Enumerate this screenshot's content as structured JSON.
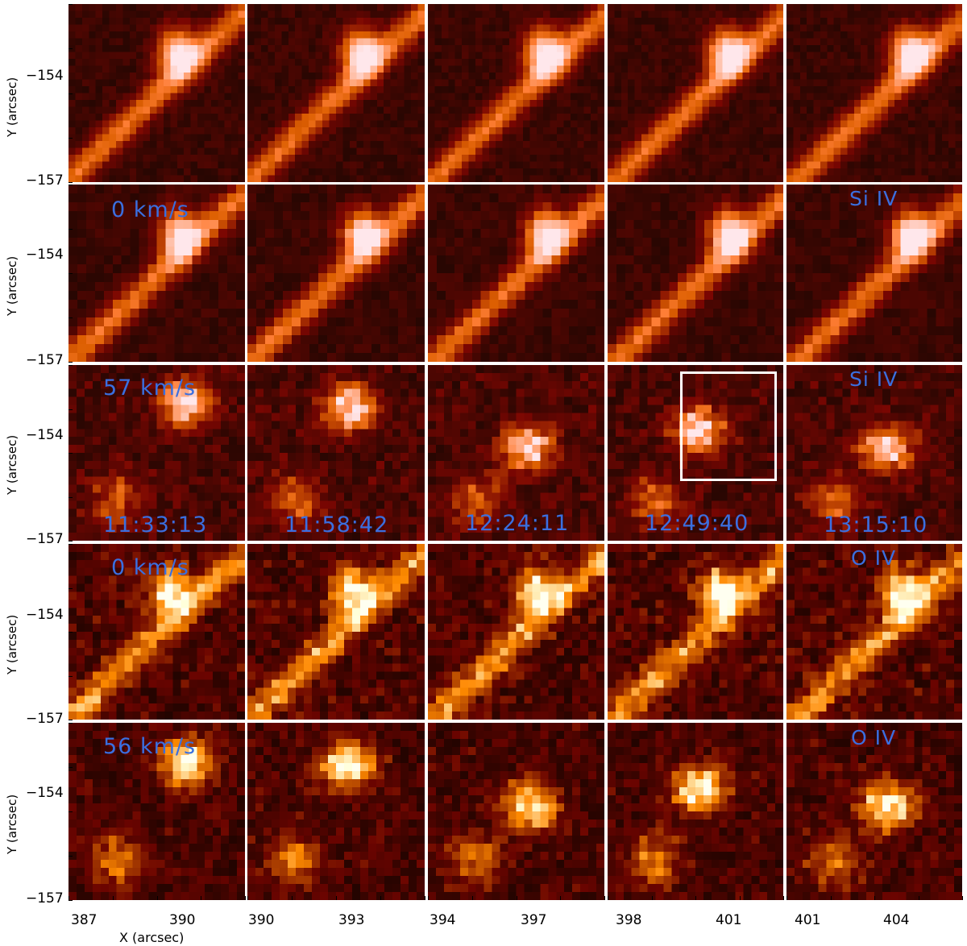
{
  "y_axis": {
    "title": "Y (arcsec)",
    "ticks": [
      "−154",
      "−157"
    ]
  },
  "x_axis": {
    "title": "X (arcsec)",
    "ticks": [
      [
        "387",
        "390"
      ],
      [
        "390",
        "393"
      ],
      [
        "394",
        "397"
      ],
      [
        "398",
        "401"
      ],
      [
        "401",
        "404"
      ]
    ]
  },
  "row_labels": {
    "row2_velocity": "0 km/s",
    "row2_line": "Si IV",
    "row3_velocity": "57 km/s",
    "row3_line": "Si IV",
    "row4_velocity": "0 km/s",
    "row4_line": "O IV",
    "row5_velocity": "56 km/s",
    "row5_line": "O IV"
  },
  "timestamps": [
    "11:33:13",
    "11:58:42",
    "12:24:11",
    "12:49:40",
    "13:15:10"
  ],
  "colors": {
    "label_blue": "#3a6fe0",
    "colormap": "sdo-aia-171-like red-brown to white"
  }
}
